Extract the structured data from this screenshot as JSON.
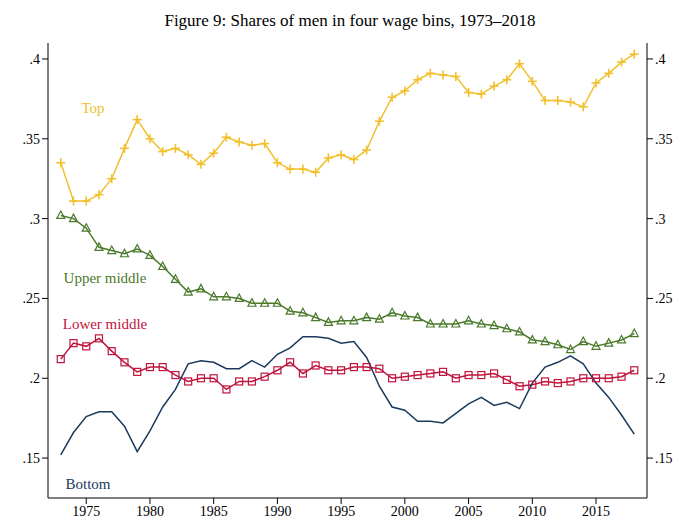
{
  "chart_data": {
    "type": "line",
    "title": "Figure 9: Shares of men in four wage bins, 1973–2018",
    "x": [
      1973,
      1974,
      1975,
      1976,
      1977,
      1978,
      1979,
      1980,
      1981,
      1982,
      1983,
      1984,
      1985,
      1986,
      1987,
      1988,
      1989,
      1990,
      1991,
      1992,
      1993,
      1994,
      1995,
      1996,
      1997,
      1998,
      1999,
      2000,
      2001,
      2002,
      2003,
      2004,
      2005,
      2006,
      2007,
      2008,
      2009,
      2010,
      2011,
      2012,
      2013,
      2014,
      2015,
      2016,
      2017,
      2018
    ],
    "series": [
      {
        "name": "Top",
        "color": "#f2c02e",
        "marker": "plus",
        "values": [
          0.335,
          0.311,
          0.311,
          0.315,
          0.325,
          0.344,
          0.362,
          0.35,
          0.342,
          0.344,
          0.34,
          0.334,
          0.341,
          0.351,
          0.348,
          0.346,
          0.347,
          0.335,
          0.331,
          0.331,
          0.329,
          0.338,
          0.34,
          0.337,
          0.343,
          0.361,
          0.376,
          0.38,
          0.387,
          0.391,
          0.39,
          0.389,
          0.379,
          0.378,
          0.383,
          0.387,
          0.397,
          0.386,
          0.374,
          0.374,
          0.373,
          0.37,
          0.385,
          0.391,
          0.398,
          0.403
        ]
      },
      {
        "name": "Upper middle",
        "color": "#4a7a2a",
        "marker": "triangle",
        "values": [
          0.302,
          0.3,
          0.294,
          0.282,
          0.28,
          0.278,
          0.281,
          0.277,
          0.27,
          0.262,
          0.254,
          0.256,
          0.251,
          0.251,
          0.25,
          0.247,
          0.247,
          0.247,
          0.242,
          0.241,
          0.238,
          0.235,
          0.236,
          0.236,
          0.238,
          0.237,
          0.241,
          0.239,
          0.238,
          0.234,
          0.234,
          0.234,
          0.236,
          0.234,
          0.233,
          0.231,
          0.229,
          0.224,
          0.223,
          0.221,
          0.218,
          0.223,
          0.22,
          0.222,
          0.224,
          0.228
        ]
      },
      {
        "name": "Lower middle",
        "color": "#c0143c",
        "marker": "square",
        "values": [
          0.212,
          0.222,
          0.22,
          0.225,
          0.217,
          0.21,
          0.204,
          0.207,
          0.207,
          0.202,
          0.198,
          0.2,
          0.2,
          0.193,
          0.198,
          0.198,
          0.201,
          0.205,
          0.21,
          0.203,
          0.208,
          0.205,
          0.205,
          0.207,
          0.207,
          0.206,
          0.2,
          0.201,
          0.202,
          0.203,
          0.204,
          0.2,
          0.202,
          0.202,
          0.203,
          0.199,
          0.195,
          0.196,
          0.198,
          0.197,
          0.198,
          0.2,
          0.2,
          0.2,
          0.201,
          0.205
        ]
      },
      {
        "name": "Bottom",
        "color": "#1a3a5c",
        "marker": "none",
        "values": [
          0.152,
          0.166,
          0.176,
          0.179,
          0.179,
          0.17,
          0.154,
          0.167,
          0.182,
          0.193,
          0.209,
          0.211,
          0.21,
          0.206,
          0.206,
          0.211,
          0.207,
          0.215,
          0.219,
          0.226,
          0.226,
          0.225,
          0.222,
          0.223,
          0.213,
          0.195,
          0.182,
          0.18,
          0.173,
          0.173,
          0.172,
          0.178,
          0.184,
          0.188,
          0.183,
          0.185,
          0.181,
          0.197,
          0.207,
          0.21,
          0.214,
          0.209,
          0.197,
          0.188,
          0.177,
          0.165
        ]
      }
    ],
    "xlim": [
      1972,
      2019
    ],
    "xticks": [
      1975,
      1980,
      1985,
      1990,
      1995,
      2000,
      2005,
      2010,
      2015
    ],
    "ylim": [
      0.125,
      0.41
    ],
    "yticks": [
      {
        "value": 0.15,
        "label": ".15"
      },
      {
        "value": 0.2,
        "label": ".2"
      },
      {
        "value": 0.25,
        "label": ".25"
      },
      {
        "value": 0.3,
        "label": ".3"
      },
      {
        "value": 0.35,
        "label": ".35"
      },
      {
        "value": 0.4,
        "label": ".4"
      }
    ],
    "grid": false
  }
}
